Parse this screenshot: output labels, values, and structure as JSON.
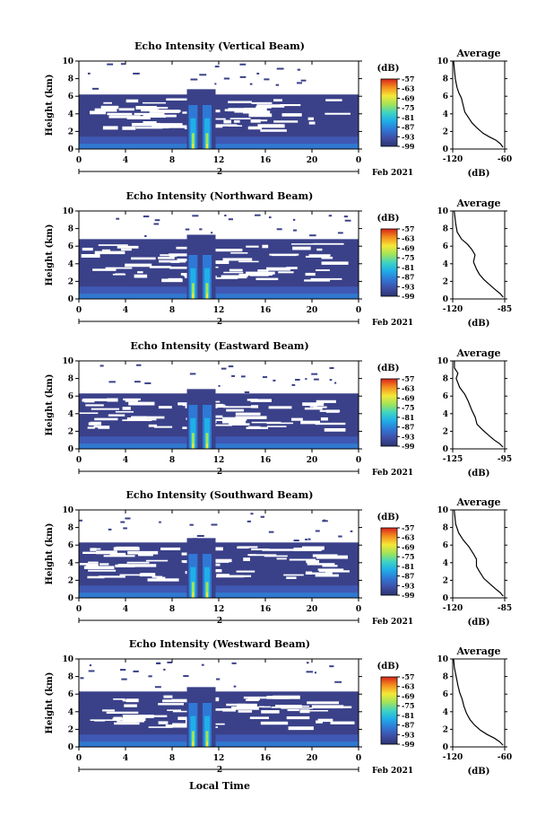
{
  "chart_data": [
    {
      "type": "heatmap",
      "title": "Echo Intensity (Vertical Beam)",
      "ylabel": "Height (km)",
      "xticks": [
        "0",
        "4",
        "8",
        "12",
        "16",
        "20",
        "0"
      ],
      "yticks": [
        "0",
        "2",
        "4",
        "6",
        "8",
        "10"
      ],
      "xlim": [
        0,
        24
      ],
      "ylim": [
        0,
        10
      ],
      "date_marker": "2",
      "date_label": "Feb 2021",
      "colorbar": {
        "unit": "(dB)",
        "ticks": [
          "-57",
          "-63",
          "-69",
          "-75",
          "-81",
          "-87",
          "-93",
          "-99"
        ],
        "range": [
          -99,
          -57
        ]
      },
      "echo_features": {
        "layer_top_km": 6.2,
        "storm_hours": [
          9.5,
          11.5
        ],
        "storm_top_km": 6.8
      },
      "average_profile": {
        "title": "Average",
        "xlabel": "(dB)",
        "xticks": [
          "-120",
          "-60"
        ],
        "xlim": [
          -120,
          -60
        ],
        "yticks": [
          "0",
          "2",
          "4",
          "6",
          "8",
          "10"
        ],
        "ylim": [
          0,
          10
        ],
        "profile": [
          [
            -62,
            0.2
          ],
          [
            -65,
            0.6
          ],
          [
            -70,
            1
          ],
          [
            -78,
            1.4
          ],
          [
            -85,
            1.8
          ],
          [
            -92,
            2.4
          ],
          [
            -98,
            3
          ],
          [
            -102,
            3.6
          ],
          [
            -106,
            4.2
          ],
          [
            -108,
            5
          ],
          [
            -110,
            5.8
          ],
          [
            -113,
            6.4
          ],
          [
            -115,
            7
          ],
          [
            -117,
            8
          ],
          [
            -118,
            9
          ],
          [
            -119,
            10
          ]
        ]
      }
    },
    {
      "type": "heatmap",
      "title": "Echo Intensity (Northward Beam)",
      "ylabel": "Height (km)",
      "xticks": [
        "0",
        "4",
        "8",
        "12",
        "16",
        "20",
        "0"
      ],
      "yticks": [
        "0",
        "2",
        "4",
        "6",
        "8",
        "10"
      ],
      "xlim": [
        0,
        24
      ],
      "ylim": [
        0,
        10
      ],
      "date_marker": "2",
      "date_label": "Feb 2021",
      "colorbar": {
        "unit": "(dB)",
        "ticks": [
          "-57",
          "-63",
          "-69",
          "-75",
          "-81",
          "-87",
          "-93",
          "-99"
        ],
        "range": [
          -99,
          -57
        ]
      },
      "echo_features": {
        "layer_top_km": 6.8,
        "storm_hours": [
          9.5,
          11.5
        ],
        "storm_top_km": 7.3
      },
      "average_profile": {
        "title": "Average",
        "xlabel": "(dB)",
        "xticks": [
          "-120",
          "-85"
        ],
        "xlim": [
          -120,
          -85
        ],
        "yticks": [
          "0",
          "2",
          "4",
          "6",
          "8",
          "10"
        ],
        "ylim": [
          0,
          10
        ],
        "profile": [
          [
            -86,
            0.2
          ],
          [
            -88,
            0.6
          ],
          [
            -91,
            1
          ],
          [
            -95,
            1.6
          ],
          [
            -99,
            2.2
          ],
          [
            -102,
            2.8
          ],
          [
            -104,
            3.4
          ],
          [
            -106,
            4.2
          ],
          [
            -105,
            5
          ],
          [
            -107,
            5.6
          ],
          [
            -110,
            6.2
          ],
          [
            -114,
            6.8
          ],
          [
            -117,
            7.6
          ],
          [
            -118,
            8.6
          ],
          [
            -119,
            10
          ]
        ]
      }
    },
    {
      "type": "heatmap",
      "title": "Echo Intensity (Eastward Beam)",
      "ylabel": "Height (km)",
      "xticks": [
        "0",
        "4",
        "8",
        "12",
        "16",
        "20",
        "0"
      ],
      "yticks": [
        "0",
        "2",
        "4",
        "6",
        "8",
        "10"
      ],
      "xlim": [
        0,
        24
      ],
      "ylim": [
        0,
        10
      ],
      "date_marker": "2",
      "date_label": "Feb 2021",
      "colorbar": {
        "unit": "(dB)",
        "ticks": [
          "-57",
          "-63",
          "-69",
          "-75",
          "-81",
          "-87",
          "-93",
          "-99"
        ],
        "range": [
          -99,
          -57
        ]
      },
      "echo_features": {
        "layer_top_km": 6.3,
        "storm_hours": [
          9.5,
          11.5
        ],
        "storm_top_km": 6.8
      },
      "average_profile": {
        "title": "Average",
        "xlabel": "(dB)",
        "xticks": [
          "-125",
          "-95"
        ],
        "xlim": [
          -125,
          -95
        ],
        "yticks": [
          "0",
          "2",
          "4",
          "6",
          "8",
          "10"
        ],
        "ylim": [
          0,
          10
        ],
        "profile": [
          [
            -96,
            0.2
          ],
          [
            -98,
            0.6
          ],
          [
            -101,
            1
          ],
          [
            -104,
            1.5
          ],
          [
            -108,
            2.2
          ],
          [
            -111,
            2.8
          ],
          [
            -112,
            3.6
          ],
          [
            -114,
            4.4
          ],
          [
            -116,
            5.4
          ],
          [
            -118,
            6.2
          ],
          [
            -121,
            7
          ],
          [
            -123,
            8
          ],
          [
            -122,
            8.6
          ],
          [
            -124,
            9.2
          ],
          [
            -124,
            10
          ]
        ]
      }
    },
    {
      "type": "heatmap",
      "title": "Echo Intensity (Southward Beam)",
      "ylabel": "Height (km)",
      "xticks": [
        "0",
        "4",
        "8",
        "12",
        "16",
        "20",
        "0"
      ],
      "yticks": [
        "0",
        "2",
        "4",
        "6",
        "8",
        "10"
      ],
      "xlim": [
        0,
        24
      ],
      "ylim": [
        0,
        10
      ],
      "date_marker": "2",
      "date_label": "Feb 2021",
      "colorbar": {
        "unit": "(dB)",
        "ticks": [
          "-57",
          "-63",
          "-69",
          "-75",
          "-81",
          "-87",
          "-93",
          "-99"
        ],
        "range": [
          -99,
          -57
        ]
      },
      "echo_features": {
        "layer_top_km": 6.3,
        "storm_hours": [
          9.5,
          11.5
        ],
        "storm_top_km": 6.8
      },
      "average_profile": {
        "title": "Average",
        "xlabel": "(dB)",
        "xticks": [
          "-120",
          "-85"
        ],
        "xlim": [
          -120,
          -85
        ],
        "yticks": [
          "0",
          "2",
          "4",
          "6",
          "8",
          "10"
        ],
        "ylim": [
          0,
          10
        ],
        "profile": [
          [
            -86,
            0.2
          ],
          [
            -88,
            0.6
          ],
          [
            -91,
            1
          ],
          [
            -95,
            1.6
          ],
          [
            -99,
            2.2
          ],
          [
            -102,
            3
          ],
          [
            -104,
            3.6
          ],
          [
            -104,
            4.4
          ],
          [
            -106,
            5
          ],
          [
            -109,
            5.8
          ],
          [
            -113,
            6.6
          ],
          [
            -116,
            7.4
          ],
          [
            -118,
            8.4
          ],
          [
            -119,
            10
          ]
        ]
      }
    },
    {
      "type": "heatmap",
      "title": "Echo Intensity (Westward Beam)",
      "ylabel": "Height (km)",
      "xticks": [
        "0",
        "4",
        "8",
        "12",
        "16",
        "20",
        "0"
      ],
      "yticks": [
        "0",
        "2",
        "4",
        "6",
        "8",
        "10"
      ],
      "xlim": [
        0,
        24
      ],
      "ylim": [
        0,
        10
      ],
      "date_marker": "2",
      "date_label": "Feb 2021",
      "colorbar": {
        "unit": "(dB)",
        "ticks": [
          "-57",
          "-63",
          "-69",
          "-75",
          "-81",
          "-87",
          "-93",
          "-99"
        ],
        "range": [
          -99,
          -57
        ]
      },
      "echo_features": {
        "layer_top_km": 6.3,
        "storm_hours": [
          9.5,
          11.5
        ],
        "storm_top_km": 6.8
      },
      "average_profile": {
        "title": "Average",
        "xlabel": "(dB)",
        "xticks": [
          "-120",
          "-60"
        ],
        "xlim": [
          -120,
          -60
        ],
        "yticks": [
          "0",
          "2",
          "4",
          "6",
          "8",
          "10"
        ],
        "ylim": [
          0,
          10
        ],
        "profile": [
          [
            -62,
            0.2
          ],
          [
            -66,
            0.6
          ],
          [
            -72,
            1
          ],
          [
            -80,
            1.4
          ],
          [
            -88,
            1.9
          ],
          [
            -95,
            2.5
          ],
          [
            -100,
            3.1
          ],
          [
            -104,
            3.8
          ],
          [
            -107,
            4.6
          ],
          [
            -109,
            5.4
          ],
          [
            -112,
            6.2
          ],
          [
            -114,
            7
          ],
          [
            -116,
            8
          ],
          [
            -118,
            9
          ],
          [
            -119,
            10
          ]
        ]
      }
    }
  ],
  "shared_xlabel": "Local Time"
}
